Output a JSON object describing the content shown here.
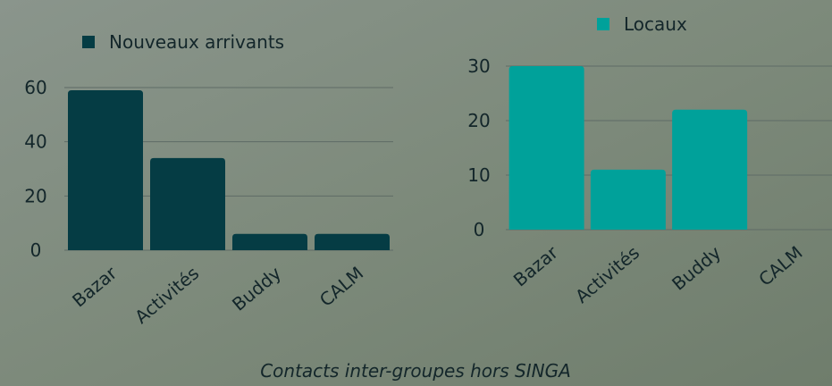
{
  "chart_data": [
    {
      "type": "bar",
      "categories": [
        "Bazar",
        "Activités",
        "Buddy",
        "CALM"
      ],
      "series": [
        {
          "name": "Nouveaux arrivants",
          "color": "#053c44",
          "values": [
            59,
            34,
            6,
            6
          ]
        }
      ],
      "ylim": [
        0,
        60
      ],
      "yticks": [
        0,
        20,
        40,
        60
      ],
      "grid": true
    },
    {
      "type": "bar",
      "categories": [
        "Bazar",
        "Activités",
        "Buddy",
        "CALM"
      ],
      "series": [
        {
          "name": "Locaux",
          "color": "#00a19a",
          "values": [
            30,
            11,
            22,
            0
          ]
        }
      ],
      "ylim": [
        0,
        30
      ],
      "yticks": [
        0,
        10,
        20,
        30
      ],
      "grid": true
    }
  ],
  "caption": "Contacts inter-groupes hors SINGA"
}
